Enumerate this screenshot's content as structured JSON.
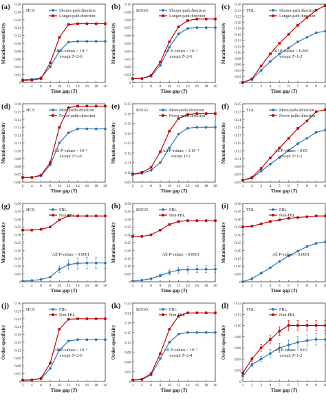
{
  "chart_data": [
    {
      "id": "a",
      "type": "line",
      "letter": "(a)",
      "dataset": "HCS",
      "ylabel": "Mutation-sensitivity",
      "xlabel": "Time gap (T)",
      "xlim": [
        2,
        20
      ],
      "xticks": [
        2,
        4,
        6,
        8,
        10,
        12,
        14,
        16,
        18,
        20
      ],
      "ylim": [
        0,
        0.2
      ],
      "yticks": [
        "0",
        "0.02",
        "0.04",
        "0.06",
        "0.08",
        "0.10",
        "0.12",
        "0.14",
        "0.16",
        "0.18",
        "0.20"
      ],
      "x": [
        2,
        4,
        6,
        8,
        10,
        12,
        14,
        16,
        18,
        20
      ],
      "legend_pos": "top-right",
      "annotation": [
        "All P-values < 10⁻⁵",
        "except T=2-6"
      ],
      "series": [
        {
          "name": "Shorter-path direction",
          "color": "#2e75b6",
          "marker": "circle",
          "values": [
            0.007,
            0.008,
            0.012,
            0.04,
            0.08,
            0.103,
            0.105,
            0.105,
            0.105,
            0.105
          ]
        },
        {
          "name": "Longer-path direction",
          "color": "#c00000",
          "marker": "square",
          "values": [
            0.005,
            0.006,
            0.01,
            0.05,
            0.115,
            0.148,
            0.15,
            0.15,
            0.15,
            0.15
          ]
        }
      ]
    },
    {
      "id": "b",
      "type": "line",
      "letter": "(b)",
      "dataset": "KEGG",
      "ylabel": "Mutation-sensitivity",
      "xlabel": "Time gap (T)",
      "xlim": [
        2,
        20
      ],
      "xticks": [
        2,
        4,
        6,
        8,
        10,
        12,
        14,
        16,
        18,
        20
      ],
      "ylim": [
        0,
        0.1
      ],
      "yticks": [
        "0",
        "0.01",
        "0.02",
        "0.03",
        "0.04",
        "0.05",
        "0.06",
        "0.07",
        "0.08",
        "0.09",
        "0.10"
      ],
      "x": [
        2,
        4,
        6,
        8,
        10,
        12,
        14,
        16,
        18,
        20
      ],
      "legend_pos": "top-right",
      "annotation": [
        "All P-values < 10⁻⁵",
        "except T=2-6"
      ],
      "series": [
        {
          "name": "Shorter-path direction",
          "color": "#2e75b6",
          "marker": "circle",
          "values": [
            0.005,
            0.005,
            0.008,
            0.022,
            0.045,
            0.062,
            0.069,
            0.07,
            0.07,
            0.07
          ]
        },
        {
          "name": "Longer-path direction",
          "color": "#c00000",
          "marker": "square",
          "values": [
            0.005,
            0.005,
            0.009,
            0.026,
            0.052,
            0.071,
            0.079,
            0.081,
            0.081,
            0.081
          ]
        }
      ]
    },
    {
      "id": "c",
      "type": "line",
      "letter": "(c)",
      "dataset": "TGL",
      "ylabel": "Mutation-sensitivity",
      "xlabel": "Time gap (T)",
      "xlim": [
        1,
        10
      ],
      "xticks": [
        1,
        2,
        3,
        4,
        5,
        6,
        7,
        8,
        9,
        10
      ],
      "ylim": [
        0,
        0.26
      ],
      "yticks": [
        "0",
        "0.02",
        "0.04",
        "0.06",
        "0.08",
        "0.10",
        "0.12",
        "0.14",
        "0.16",
        "0.18",
        "0.20",
        "0.22",
        "0.24",
        "0.26"
      ],
      "x": [
        1,
        2,
        3,
        4,
        5,
        6,
        7,
        8,
        9,
        10
      ],
      "legend_pos": "top-right",
      "annotation": [
        "All P-values < 0.003",
        "except T=1-2"
      ],
      "series": [
        {
          "name": "Shorter-path direction",
          "color": "#2e75b6",
          "marker": "circle",
          "values": [
            0.0,
            0.01,
            0.04,
            0.07,
            0.095,
            0.115,
            0.135,
            0.15,
            0.165,
            0.17
          ]
        },
        {
          "name": "Longer-path direction",
          "color": "#c00000",
          "marker": "square",
          "values": [
            0.0,
            0.012,
            0.055,
            0.095,
            0.13,
            0.16,
            0.19,
            0.215,
            0.24,
            0.255
          ]
        }
      ]
    },
    {
      "id": "d",
      "type": "line",
      "letter": "(d)",
      "dataset": "HCS",
      "ylabel": "Mutation-sensitivity",
      "xlabel": "Time gap (T)",
      "xlim": [
        2,
        20
      ],
      "xticks": [
        2,
        4,
        6,
        8,
        10,
        12,
        14,
        16,
        18,
        20
      ],
      "ylim": [
        0.06,
        0.16
      ],
      "yticks": [
        "0.06",
        "0.07",
        "0.08",
        "0.09",
        "0.10",
        "0.11",
        "0.12",
        "0.13",
        "0.14",
        "0.15",
        "0.16"
      ],
      "x": [
        2,
        4,
        6,
        8,
        10,
        12,
        14,
        16,
        18,
        20
      ],
      "legend_pos": "top-right",
      "annotation": [
        "All P-values < 10⁻⁵",
        "except T=2-6"
      ],
      "series": [
        {
          "name": "More-paths direction",
          "color": "#2e75b6",
          "marker": "circle",
          "values": [
            0.066,
            0.066,
            0.068,
            0.082,
            0.11,
            0.123,
            0.128,
            0.128,
            0.128,
            0.128
          ]
        },
        {
          "name": "Fewer-paths direction",
          "color": "#c00000",
          "marker": "square",
          "values": [
            0.066,
            0.066,
            0.069,
            0.085,
            0.13,
            0.155,
            0.157,
            0.157,
            0.157,
            0.157
          ]
        }
      ]
    },
    {
      "id": "e",
      "type": "line",
      "letter": "(e)",
      "dataset": "KEGG",
      "ylabel": "Mutation-sensitivity",
      "xlabel": "Time gap (T)",
      "xlim": [
        2,
        20
      ],
      "xticks": [
        2,
        4,
        6,
        8,
        10,
        12,
        14,
        16,
        18,
        20
      ],
      "ylim": [
        0.09,
        0.17
      ],
      "yticks": [
        "0.09",
        "0.10",
        "0.11",
        "0.12",
        "0.13",
        "0.14",
        "0.15",
        "0.16",
        "0.17"
      ],
      "x": [
        2,
        4,
        6,
        8,
        10,
        12,
        14,
        16,
        18,
        20
      ],
      "legend_pos": "top-right",
      "annotation": [
        "All P-values < 3.10⁻⁵",
        "except T=2"
      ],
      "series": [
        {
          "name": "More-paths direction",
          "color": "#2e75b6",
          "marker": "circle",
          "values": [
            0.098,
            0.099,
            0.102,
            0.11,
            0.125,
            0.139,
            0.145,
            0.146,
            0.146,
            0.146
          ]
        },
        {
          "name": "Fewer-paths direction",
          "color": "#c00000",
          "marker": "square",
          "values": [
            0.098,
            0.1,
            0.105,
            0.121,
            0.142,
            0.155,
            0.159,
            0.16,
            0.16,
            0.16
          ]
        }
      ]
    },
    {
      "id": "f",
      "type": "line",
      "letter": "(f)",
      "dataset": "TGL",
      "ylabel": "Mutation-sensitivity",
      "xlabel": "Time gap (T)",
      "xlim": [
        1,
        10
      ],
      "xticks": [
        1,
        2,
        3,
        4,
        5,
        6,
        7,
        8,
        9,
        10
      ],
      "ylim": [
        0.05,
        0.25
      ],
      "yticks": [
        "0.05",
        "0.07",
        "0.09",
        "0.11",
        "0.13",
        "0.15",
        "0.17",
        "0.19",
        "0.21",
        "0.23",
        "0.25"
      ],
      "x": [
        1,
        2,
        3,
        4,
        5,
        6,
        7,
        8,
        9,
        10
      ],
      "legend_pos": "top-right",
      "annotation": [
        "All P-values < 0.05",
        "except T=1-2"
      ],
      "series": [
        {
          "name": "More-paths direction",
          "color": "#2e75b6",
          "marker": "circle",
          "values": [
            0.055,
            0.06,
            0.078,
            0.096,
            0.113,
            0.131,
            0.148,
            0.162,
            0.177,
            0.183
          ]
        },
        {
          "name": "Fewer-paths direction",
          "color": "#c00000",
          "marker": "square",
          "values": [
            0.055,
            0.062,
            0.085,
            0.112,
            0.137,
            0.162,
            0.187,
            0.206,
            0.23,
            0.235
          ]
        }
      ]
    },
    {
      "id": "g",
      "type": "line",
      "letter": "(g)",
      "dataset": "HCS",
      "ylabel": "Mutation-sensitivity",
      "xlabel": "Time gap (T)",
      "xlim": [
        2,
        20
      ],
      "xticks": [
        2,
        4,
        6,
        8,
        10,
        12,
        14,
        16,
        18,
        20
      ],
      "ylim": [
        0,
        0.5
      ],
      "yticks": [
        "0",
        "0.05",
        "0.10",
        "0.15",
        "0.20",
        "0.25",
        "0.30",
        "0.35",
        "0.40",
        "0.45",
        "0.50"
      ],
      "x": [
        2,
        4,
        6,
        8,
        10,
        12,
        14,
        16,
        18,
        20
      ],
      "legend_pos": "top-right",
      "annotation": [
        "All P-values < 0.0001"
      ],
      "series": [
        {
          "name": "FBL",
          "color": "#2e75b6",
          "marker": "circle",
          "values": [
            0.005,
            0.008,
            0.015,
            0.03,
            0.08,
            0.11,
            0.118,
            0.12,
            0.12,
            0.12
          ],
          "errors": [
            0,
            0,
            0,
            0.005,
            0.02,
            0.03,
            0.035,
            0.035,
            0.035,
            0.035
          ]
        },
        {
          "name": "Non-FBL",
          "color": "#c00000",
          "marker": "square",
          "values": [
            0.33,
            0.33,
            0.335,
            0.35,
            0.395,
            0.42,
            0.42,
            0.42,
            0.42,
            0.42
          ]
        }
      ]
    },
    {
      "id": "h",
      "type": "line",
      "letter": "(h)",
      "dataset": "KEGG",
      "ylabel": "Mutation-sensitivity",
      "xlabel": "Time gap (T)",
      "xlim": [
        2,
        20
      ],
      "xticks": [
        2,
        4,
        6,
        8,
        10,
        12,
        14,
        16,
        18,
        20
      ],
      "ylim": [
        0,
        0.5
      ],
      "yticks": [
        "0",
        "0.05",
        "0.10",
        "0.15",
        "0.20",
        "0.25",
        "0.30",
        "0.35",
        "0.40",
        "0.45",
        "0.50"
      ],
      "x": [
        2,
        4,
        6,
        8,
        10,
        12,
        14,
        16,
        18,
        20
      ],
      "legend_pos": "top-right",
      "annotation": [
        "All P-values < 0.0001"
      ],
      "series": [
        {
          "name": "FBL",
          "color": "#2e75b6",
          "marker": "circle",
          "values": [
            0.005,
            0.01,
            0.02,
            0.04,
            0.06,
            0.075,
            0.078,
            0.08,
            0.08,
            0.08
          ],
          "errors": [
            0,
            0,
            0.003,
            0.008,
            0.015,
            0.02,
            0.022,
            0.022,
            0.022,
            0.022
          ]
        },
        {
          "name": "Non-FBL",
          "color": "#c00000",
          "marker": "square",
          "values": [
            0.29,
            0.29,
            0.3,
            0.33,
            0.365,
            0.385,
            0.39,
            0.39,
            0.39,
            0.39
          ]
        }
      ]
    },
    {
      "id": "i",
      "type": "line",
      "letter": "(i)",
      "dataset": "TGL",
      "ylabel": "Mutation-sensitivity",
      "xlabel": "Time gap (T)",
      "xlim": [
        1,
        10
      ],
      "xticks": [
        1,
        2,
        3,
        4,
        5,
        6,
        7,
        8,
        9,
        10
      ],
      "ylim": [
        0,
        0.5
      ],
      "yticks": [
        "0",
        "0.05",
        "0.10",
        "0.15",
        "0.20",
        "0.25",
        "0.30",
        "0.35",
        "0.40",
        "0.45",
        "0.50"
      ],
      "x": [
        1,
        2,
        3,
        4,
        5,
        6,
        7,
        8,
        9,
        10
      ],
      "legend_pos": "top-right",
      "annotation": [
        "All P-values < 0.0001"
      ],
      "series": [
        {
          "name": "FBL",
          "color": "#2e75b6",
          "marker": "circle",
          "values": [
            0.0,
            0.02,
            0.055,
            0.09,
            0.13,
            0.165,
            0.195,
            0.225,
            0.245,
            0.255
          ]
        },
        {
          "name": "Non-FBL",
          "color": "#c00000",
          "marker": "square",
          "values": [
            0.35,
            0.355,
            0.37,
            0.385,
            0.395,
            0.405,
            0.41,
            0.415,
            0.42,
            0.42
          ]
        }
      ]
    },
    {
      "id": "j",
      "type": "line",
      "letter": "(j)",
      "dataset": "HCS",
      "ylabel": "Order-specificity",
      "xlabel": "Time gap (T)",
      "xlim": [
        2,
        20
      ],
      "xticks": [
        2,
        4,
        6,
        8,
        10,
        12,
        14,
        16,
        18,
        20
      ],
      "ylim": [
        0,
        0.3
      ],
      "yticks": [
        "0",
        "0.03",
        "0.06",
        "0.09",
        "0.12",
        "0.15",
        "0.18",
        "0.21",
        "0.24",
        "0.27",
        "0.30"
      ],
      "x": [
        2,
        4,
        6,
        8,
        10,
        12,
        14,
        16,
        18,
        20
      ],
      "legend_pos": "top-right",
      "annotation": [
        "All P-values < 10⁻⁵",
        "except T=2-6"
      ],
      "series": [
        {
          "name": "FBL",
          "color": "#2e75b6",
          "marker": "circle",
          "values": [
            0.005,
            0.006,
            0.01,
            0.05,
            0.12,
            0.155,
            0.16,
            0.16,
            0.16,
            0.16
          ]
        },
        {
          "name": "Non-FBL",
          "color": "#c00000",
          "marker": "square",
          "values": [
            0.005,
            0.006,
            0.012,
            0.07,
            0.2,
            0.238,
            0.24,
            0.24,
            0.24,
            0.24
          ]
        }
      ]
    },
    {
      "id": "k",
      "type": "line",
      "letter": "(k)",
      "dataset": "KEGG",
      "ylabel": "Order-specificity",
      "xlabel": "Time gap (T)",
      "xlim": [
        2,
        20
      ],
      "xticks": [
        2,
        4,
        6,
        8,
        10,
        12,
        14,
        16,
        18,
        20
      ],
      "ylim": [
        0,
        0.24
      ],
      "yticks": [
        "0",
        "0.03",
        "0.06",
        "0.09",
        "0.12",
        "0.15",
        "0.18",
        "0.21",
        "0.24"
      ],
      "x": [
        2,
        4,
        6,
        8,
        10,
        12,
        14,
        16,
        18,
        20
      ],
      "legend_pos": "top-right",
      "annotation": [
        "All P-values < 10⁻⁵",
        "except T=2-4"
      ],
      "series": [
        {
          "name": "FBL",
          "color": "#2e75b6",
          "marker": "circle",
          "values": [
            0.004,
            0.006,
            0.02,
            0.07,
            0.12,
            0.145,
            0.15,
            0.15,
            0.15,
            0.15
          ]
        },
        {
          "name": "Non-FBL",
          "color": "#c00000",
          "marker": "square",
          "values": [
            0.004,
            0.007,
            0.024,
            0.085,
            0.16,
            0.2,
            0.21,
            0.21,
            0.21,
            0.21
          ]
        }
      ]
    },
    {
      "id": "l",
      "type": "line",
      "letter": "(l)",
      "dataset": "TGL",
      "ylabel": "Order-specificity",
      "xlabel": "Time gap (T)",
      "xlim": [
        1,
        10
      ],
      "xticks": [
        1,
        2,
        3,
        4,
        5,
        6,
        7,
        8,
        9,
        10
      ],
      "ylim": [
        0,
        0.14
      ],
      "yticks": [
        "0",
        "0.02",
        "0.04",
        "0.06",
        "0.08",
        "0.10",
        "0.12",
        "0.14"
      ],
      "x": [
        1,
        2,
        3,
        4,
        5,
        6,
        7,
        8,
        9,
        10
      ],
      "legend_pos": "top-right",
      "annotation": [
        "All P-values < 0.02",
        "except T=1-2"
      ],
      "series": [
        {
          "name": "FBL",
          "color": "#2e75b6",
          "marker": "circle",
          "values": [
            0.01,
            0.03,
            0.04,
            0.05,
            0.06,
            0.065,
            0.07,
            0.073,
            0.075,
            0.075
          ],
          "errors": [
            0,
            0.003,
            0.005,
            0.007,
            0.008,
            0.009,
            0.01,
            0.01,
            0.01,
            0.01
          ]
        },
        {
          "name": "Non-FBL",
          "color": "#c00000",
          "marker": "square",
          "values": [
            0.015,
            0.04,
            0.06,
            0.075,
            0.09,
            0.1,
            0.1,
            0.1,
            0.1,
            0.1
          ],
          "errors": [
            0,
            0.004,
            0.006,
            0.008,
            0.008,
            0.009,
            0.009,
            0.009,
            0.009,
            0.009
          ]
        }
      ]
    }
  ]
}
